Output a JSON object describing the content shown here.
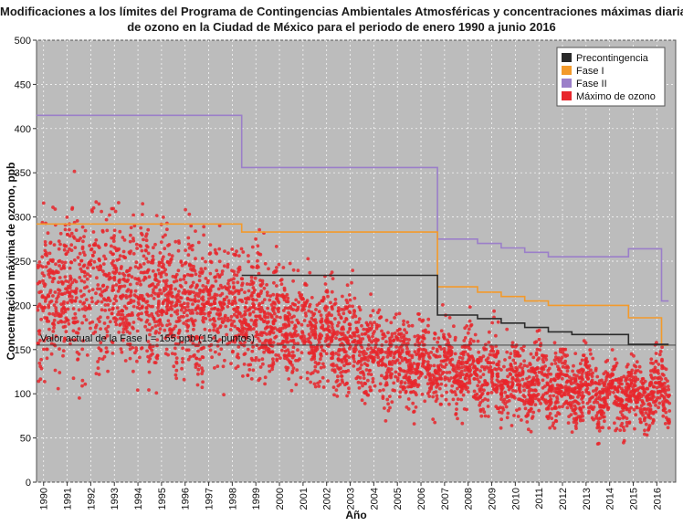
{
  "chart_data": {
    "type": "scatter",
    "title_line1": "Modificaciones a los límites del Programa de Contingencias Ambientales Atmosféricas y concentraciones máximas diarias",
    "title_line2": "de ozono en la Ciudad de México para el periodo de enero 1990 a junio 2016",
    "xlabel": "Año",
    "ylabel": "Concentración máxima de ozono, ppb",
    "xlim": [
      1989.7,
      2016.8
    ],
    "ylim": [
      0,
      500
    ],
    "yticks": [
      0,
      50,
      100,
      150,
      200,
      250,
      300,
      350,
      400,
      450,
      500
    ],
    "xticks": [
      "1990",
      "1991",
      "1992",
      "1993",
      "1994",
      "1995",
      "1996",
      "1997",
      "1998",
      "1999",
      "2000",
      "2001",
      "2002",
      "2003",
      "2004",
      "2005",
      "2006",
      "2007",
      "2008",
      "2009",
      "2010",
      "2011",
      "2012",
      "2013",
      "2014",
      "2015",
      "2016"
    ],
    "background_color": "#bcbcbc",
    "grid": true,
    "grid_style": "dashed",
    "legend": {
      "position": "top-right",
      "entries": [
        {
          "name": "Precontingencia",
          "color": "#2b2b2b"
        },
        {
          "name": "Fase I",
          "color": "#f39a2b"
        },
        {
          "name": "Fase II",
          "color": "#9b7fc9"
        },
        {
          "name": "Máximo de ozono",
          "color": "#e8262c"
        }
      ]
    },
    "annotation": {
      "text": "Valor actual de la Fase I = 155 ppb (151 puntos)",
      "y": 155
    },
    "series": [
      {
        "name": "Fase II",
        "color": "#9b7fc9",
        "step_points": [
          [
            1989.7,
            415
          ],
          [
            1998.4,
            415
          ],
          [
            1998.4,
            356
          ],
          [
            2006.7,
            356
          ],
          [
            2006.7,
            275
          ],
          [
            2008.4,
            275
          ],
          [
            2008.4,
            270
          ],
          [
            2009.4,
            270
          ],
          [
            2009.4,
            265
          ],
          [
            2010.4,
            265
          ],
          [
            2010.4,
            260
          ],
          [
            2011.4,
            260
          ],
          [
            2011.4,
            255
          ],
          [
            2014.8,
            255
          ],
          [
            2014.8,
            264
          ],
          [
            2016.2,
            264
          ],
          [
            2016.2,
            205
          ],
          [
            2016.5,
            205
          ]
        ]
      },
      {
        "name": "Fase I",
        "color": "#f39a2b",
        "step_points": [
          [
            1989.7,
            292
          ],
          [
            1998.4,
            292
          ],
          [
            1998.4,
            283
          ],
          [
            2006.7,
            283
          ],
          [
            2006.7,
            221
          ],
          [
            2008.4,
            221
          ],
          [
            2008.4,
            215
          ],
          [
            2009.4,
            215
          ],
          [
            2009.4,
            210
          ],
          [
            2010.4,
            210
          ],
          [
            2010.4,
            205
          ],
          [
            2011.4,
            205
          ],
          [
            2011.4,
            200
          ],
          [
            2014.8,
            200
          ],
          [
            2014.8,
            186
          ],
          [
            2016.2,
            186
          ],
          [
            2016.2,
            155
          ],
          [
            2016.5,
            155
          ]
        ]
      },
      {
        "name": "Precontingencia",
        "color": "#2b2b2b",
        "step_points": [
          [
            1998.4,
            234
          ],
          [
            2006.7,
            234
          ],
          [
            2006.7,
            189
          ],
          [
            2008.4,
            189
          ],
          [
            2008.4,
            185
          ],
          [
            2009.4,
            185
          ],
          [
            2009.4,
            180
          ],
          [
            2010.4,
            180
          ],
          [
            2010.4,
            175
          ],
          [
            2011.4,
            175
          ],
          [
            2011.4,
            170
          ],
          [
            2012.4,
            170
          ],
          [
            2012.4,
            167
          ],
          [
            2014.8,
            167
          ],
          [
            2014.8,
            156
          ],
          [
            2016.5,
            156
          ]
        ]
      },
      {
        "name": "Máximo de ozono",
        "color": "#e8262c",
        "trend": {
          "years": [
            1990,
            1992,
            1994,
            1996,
            1998,
            2000,
            2002,
            2004,
            2006,
            2008,
            2010,
            2012,
            2014,
            2016
          ],
          "mean": [
            205,
            225,
            205,
            205,
            195,
            185,
            165,
            145,
            135,
            125,
            115,
            110,
            100,
            100
          ],
          "spread": [
            70,
            75,
            65,
            60,
            55,
            50,
            45,
            40,
            38,
            35,
            35,
            33,
            32,
            33
          ]
        }
      }
    ]
  }
}
